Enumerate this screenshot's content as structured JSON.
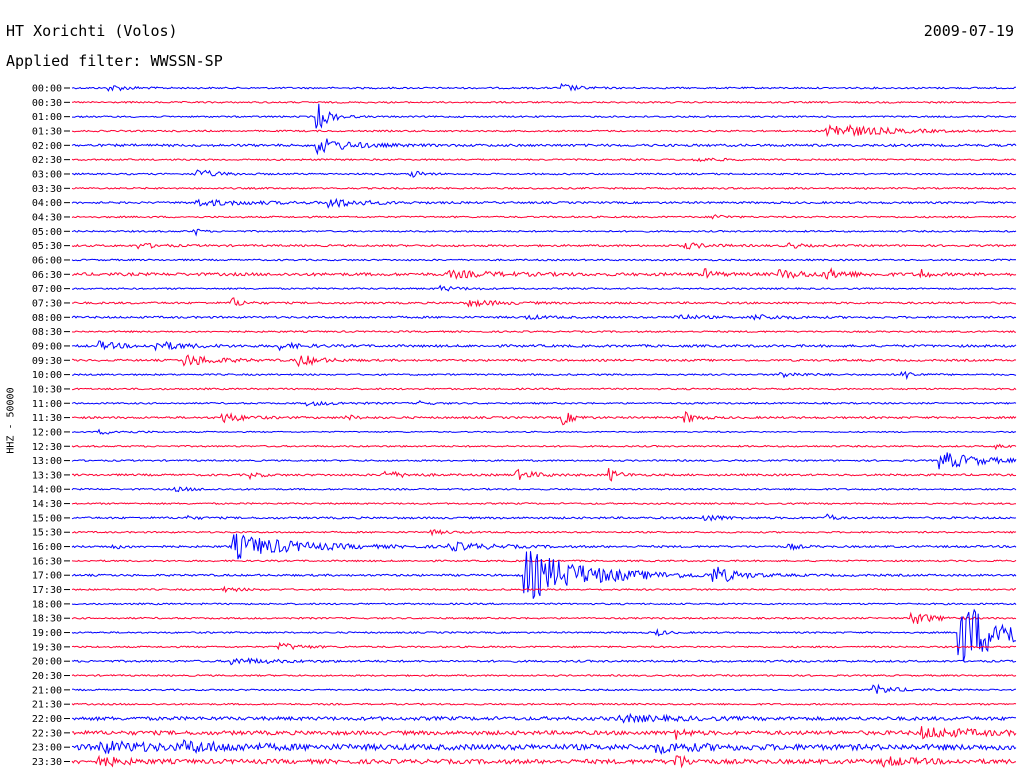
{
  "header": {
    "station": "HT Xorichti (Volos)",
    "date": "2009-07-19",
    "filter": "Applied filter: WWSSN-SP"
  },
  "chart_data": {
    "type": "line",
    "ylabel": "HHZ - 50000",
    "colors": [
      "#0000ff",
      "#ff0033"
    ],
    "rows": [
      {
        "label": "00:00",
        "noise": 0.8,
        "events": [
          {
            "x": 0.04,
            "a": 3,
            "d": 0.02
          },
          {
            "x": 0.52,
            "a": 4,
            "d": 0.015
          }
        ]
      },
      {
        "label": "00:30",
        "noise": 0.8,
        "events": []
      },
      {
        "label": "01:00",
        "noise": 0.8,
        "events": [
          {
            "x": 0.26,
            "a": 14,
            "d": 0.012
          }
        ]
      },
      {
        "label": "01:30",
        "noise": 0.8,
        "events": [
          {
            "x": 0.8,
            "a": 8,
            "d": 0.05
          }
        ]
      },
      {
        "label": "02:00",
        "noise": 1.2,
        "events": [
          {
            "x": 0.26,
            "a": 8,
            "d": 0.03
          }
        ]
      },
      {
        "label": "02:30",
        "noise": 0.8,
        "events": [
          {
            "x": 0.66,
            "a": 2.5,
            "d": 0.02
          }
        ]
      },
      {
        "label": "03:00",
        "noise": 0.8,
        "events": [
          {
            "x": 0.13,
            "a": 5,
            "d": 0.02
          },
          {
            "x": 0.36,
            "a": 4,
            "d": 0.01
          }
        ]
      },
      {
        "label": "03:30",
        "noise": 0.8,
        "events": []
      },
      {
        "label": "04:00",
        "noise": 1.0,
        "events": [
          {
            "x": 0.13,
            "a": 3,
            "d": 0.06
          },
          {
            "x": 0.27,
            "a": 5,
            "d": 0.03
          }
        ]
      },
      {
        "label": "04:30",
        "noise": 0.8,
        "events": [
          {
            "x": 0.68,
            "a": 3,
            "d": 0.01
          }
        ]
      },
      {
        "label": "05:00",
        "noise": 0.8,
        "events": [
          {
            "x": 0.13,
            "a": 4,
            "d": 0.005
          }
        ]
      },
      {
        "label": "05:30",
        "noise": 1.0,
        "events": [
          {
            "x": 0.07,
            "a": 2.5,
            "d": 0.02
          },
          {
            "x": 0.65,
            "a": 3,
            "d": 0.02
          },
          {
            "x": 0.76,
            "a": 3,
            "d": 0.01
          }
        ]
      },
      {
        "label": "06:00",
        "noise": 0.8,
        "events": []
      },
      {
        "label": "06:30",
        "noise": 1.5,
        "events": [
          {
            "x": 0.4,
            "a": 3,
            "d": 0.05
          },
          {
            "x": 0.67,
            "a": 5,
            "d": 0.01
          },
          {
            "x": 0.75,
            "a": 4,
            "d": 0.03
          },
          {
            "x": 0.8,
            "a": 4,
            "d": 0.02
          },
          {
            "x": 0.9,
            "a": 6,
            "d": 0.005
          }
        ]
      },
      {
        "label": "07:00",
        "noise": 0.8,
        "events": [
          {
            "x": 0.39,
            "a": 2.5,
            "d": 0.02
          }
        ]
      },
      {
        "label": "07:30",
        "noise": 1.0,
        "events": [
          {
            "x": 0.17,
            "a": 5,
            "d": 0.01
          },
          {
            "x": 0.42,
            "a": 3,
            "d": 0.03
          }
        ]
      },
      {
        "label": "08:00",
        "noise": 1.0,
        "events": [
          {
            "x": 0.48,
            "a": 2,
            "d": 0.02
          },
          {
            "x": 0.64,
            "a": 3,
            "d": 0.02
          },
          {
            "x": 0.72,
            "a": 2.5,
            "d": 0.03
          }
        ]
      },
      {
        "label": "08:30",
        "noise": 0.8,
        "events": []
      },
      {
        "label": "09:00",
        "noise": 1.2,
        "events": [
          {
            "x": 0.03,
            "a": 4,
            "d": 0.02
          },
          {
            "x": 0.09,
            "a": 4,
            "d": 0.03
          },
          {
            "x": 0.22,
            "a": 3,
            "d": 0.02
          }
        ]
      },
      {
        "label": "09:30",
        "noise": 1.0,
        "events": [
          {
            "x": 0.12,
            "a": 6,
            "d": 0.03
          },
          {
            "x": 0.24,
            "a": 6,
            "d": 0.02
          }
        ]
      },
      {
        "label": "10:00",
        "noise": 0.8,
        "events": [
          {
            "x": 0.75,
            "a": 3,
            "d": 0.02
          },
          {
            "x": 0.88,
            "a": 5,
            "d": 0.01
          }
        ]
      },
      {
        "label": "10:30",
        "noise": 0.8,
        "events": []
      },
      {
        "label": "11:00",
        "noise": 0.8,
        "events": [
          {
            "x": 0.25,
            "a": 2,
            "d": 0.03
          },
          {
            "x": 0.37,
            "a": 2,
            "d": 0.01
          }
        ]
      },
      {
        "label": "11:30",
        "noise": 1.0,
        "events": [
          {
            "x": 0.16,
            "a": 5,
            "d": 0.02
          },
          {
            "x": 0.29,
            "a": 3,
            "d": 0.01
          },
          {
            "x": 0.52,
            "a": 7,
            "d": 0.01
          },
          {
            "x": 0.65,
            "a": 6,
            "d": 0.01
          }
        ]
      },
      {
        "label": "12:00",
        "noise": 0.6,
        "events": [
          {
            "x": 0.03,
            "a": 2,
            "d": 0.03
          }
        ]
      },
      {
        "label": "12:30",
        "noise": 0.8,
        "events": [
          {
            "x": 0.98,
            "a": 2.5,
            "d": 0.01
          }
        ]
      },
      {
        "label": "13:00",
        "noise": 0.8,
        "events": [
          {
            "x": 0.92,
            "a": 9,
            "d": 0.04
          }
        ]
      },
      {
        "label": "13:30",
        "noise": 1.0,
        "events": [
          {
            "x": 0.19,
            "a": 3,
            "d": 0.01
          },
          {
            "x": 0.33,
            "a": 4,
            "d": 0.02
          },
          {
            "x": 0.47,
            "a": 5,
            "d": 0.02
          },
          {
            "x": 0.57,
            "a": 6,
            "d": 0.01
          }
        ]
      },
      {
        "label": "14:00",
        "noise": 0.8,
        "events": [
          {
            "x": 0.11,
            "a": 2,
            "d": 0.02
          }
        ]
      },
      {
        "label": "14:30",
        "noise": 0.8,
        "events": []
      },
      {
        "label": "15:00",
        "noise": 1.0,
        "events": [
          {
            "x": 0.12,
            "a": 2,
            "d": 0.01
          },
          {
            "x": 0.67,
            "a": 3,
            "d": 0.02
          },
          {
            "x": 0.8,
            "a": 7,
            "d": 0.005
          }
        ]
      },
      {
        "label": "15:30",
        "noise": 0.8,
        "events": [
          {
            "x": 0.38,
            "a": 2,
            "d": 0.02
          }
        ]
      },
      {
        "label": "16:00",
        "noise": 1.0,
        "events": [
          {
            "x": 0.04,
            "a": 3,
            "d": 0.01
          },
          {
            "x": 0.17,
            "a": 13,
            "d": 0.06
          },
          {
            "x": 0.4,
            "a": 4,
            "d": 0.04
          },
          {
            "x": 0.76,
            "a": 3,
            "d": 0.01
          }
        ]
      },
      {
        "label": "16:30",
        "noise": 0.8,
        "events": []
      },
      {
        "label": "17:00",
        "noise": 1.0,
        "events": [
          {
            "x": 0.48,
            "a": 26,
            "d": 0.06
          },
          {
            "x": 0.68,
            "a": 9,
            "d": 0.02
          }
        ]
      },
      {
        "label": "17:30",
        "noise": 0.8,
        "events": [
          {
            "x": 0.16,
            "a": 2,
            "d": 0.02
          }
        ]
      },
      {
        "label": "18:00",
        "noise": 0.8,
        "events": []
      },
      {
        "label": "18:30",
        "noise": 0.8,
        "events": [
          {
            "x": 0.89,
            "a": 7,
            "d": 0.02
          }
        ]
      },
      {
        "label": "19:00",
        "noise": 0.8,
        "events": [
          {
            "x": 0.62,
            "a": 3,
            "d": 0.01
          },
          {
            "x": 0.94,
            "a": 34,
            "d": 0.05
          }
        ]
      },
      {
        "label": "19:30",
        "noise": 0.8,
        "events": [
          {
            "x": 0.22,
            "a": 4,
            "d": 0.02
          }
        ]
      },
      {
        "label": "20:00",
        "noise": 1.0,
        "events": [
          {
            "x": 0.17,
            "a": 3,
            "d": 0.04
          }
        ]
      },
      {
        "label": "20:30",
        "noise": 0.8,
        "events": []
      },
      {
        "label": "21:00",
        "noise": 0.8,
        "events": [
          {
            "x": 0.85,
            "a": 5,
            "d": 0.02
          }
        ]
      },
      {
        "label": "21:30",
        "noise": 0.8,
        "events": []
      },
      {
        "label": "22:00",
        "noise": 1.8,
        "events": [
          {
            "x": 0.58,
            "a": 3,
            "d": 0.05
          }
        ]
      },
      {
        "label": "22:30",
        "noise": 2.0,
        "events": [
          {
            "x": 0.64,
            "a": 5,
            "d": 0.01
          },
          {
            "x": 0.9,
            "a": 5,
            "d": 0.05
          }
        ]
      },
      {
        "label": "23:00",
        "noise": 2.8,
        "events": [
          {
            "x": 0.03,
            "a": 5,
            "d": 0.05
          },
          {
            "x": 0.12,
            "a": 4,
            "d": 0.05
          },
          {
            "x": 0.62,
            "a": 4,
            "d": 0.04
          }
        ]
      },
      {
        "label": "23:30",
        "noise": 2.2,
        "events": [
          {
            "x": 0.03,
            "a": 5,
            "d": 0.02
          },
          {
            "x": 0.64,
            "a": 8,
            "d": 0.01
          },
          {
            "x": 0.86,
            "a": 4,
            "d": 0.03
          }
        ]
      }
    ]
  }
}
